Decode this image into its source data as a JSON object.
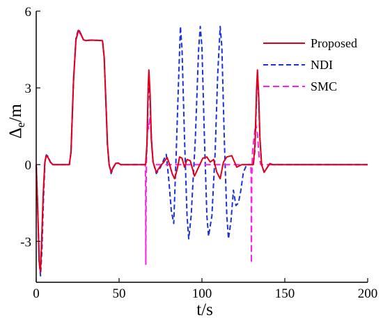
{
  "chart_data": {
    "type": "line",
    "xlabel": "t/s",
    "ylabel": {
      "main": "Δ",
      "sub": "e",
      "unit": "/m"
    },
    "xlim": [
      0,
      200
    ],
    "ylim": [
      -4.6,
      6
    ],
    "xticks": [
      0,
      50,
      100,
      150,
      200
    ],
    "xtick_labels": [
      "0",
      "50",
      "100",
      "150",
      "200"
    ],
    "yticks": [
      -3,
      0,
      3,
      6
    ],
    "ytick_labels": [
      "-3",
      "0",
      "3",
      "6"
    ],
    "grid": false,
    "legend_position": "top-right",
    "series": [
      {
        "name": "Proposed",
        "color": "#e0001b",
        "dash": "solid",
        "points": [
          [
            0,
            0
          ],
          [
            0.8,
            -1.5
          ],
          [
            1.8,
            -3.8
          ],
          [
            2.5,
            -4.2
          ],
          [
            3.2,
            -3.2
          ],
          [
            4.2,
            -1.2
          ],
          [
            5.2,
            0.1
          ],
          [
            6,
            0.35
          ],
          [
            7,
            0.3
          ],
          [
            8.5,
            0.1
          ],
          [
            10,
            0
          ],
          [
            20,
            0
          ],
          [
            21,
            0.5
          ],
          [
            22.5,
            3.3
          ],
          [
            24,
            4.9
          ],
          [
            25.5,
            5.25
          ],
          [
            27,
            5.1
          ],
          [
            28.5,
            4.88
          ],
          [
            30,
            4.85
          ],
          [
            33,
            4.87
          ],
          [
            40,
            4.85
          ],
          [
            41,
            4.2
          ],
          [
            42,
            2.5
          ],
          [
            43,
            0.8
          ],
          [
            44,
            0
          ],
          [
            45.2,
            -0.3
          ],
          [
            46.5,
            -0.1
          ],
          [
            48,
            0.05
          ],
          [
            49.5,
            0.06
          ],
          [
            51,
            0
          ],
          [
            66,
            0
          ],
          [
            66.8,
            0.8
          ],
          [
            67.5,
            3.0
          ],
          [
            68,
            3.7
          ],
          [
            68.7,
            2.8
          ],
          [
            69.5,
            1.0
          ],
          [
            70.5,
            0.1
          ],
          [
            72.5,
            -0.3
          ],
          [
            75,
            -0.05
          ],
          [
            77,
            0.1
          ],
          [
            79,
            0.28
          ],
          [
            80.5,
            0
          ],
          [
            82,
            -0.35
          ],
          [
            83.5,
            -0.55
          ],
          [
            85,
            -0.2
          ],
          [
            86.5,
            0.3
          ],
          [
            88,
            0.25
          ],
          [
            89.5,
            -0.1
          ],
          [
            91,
            0.2
          ],
          [
            93,
            0.15
          ],
          [
            95.5,
            -0.45
          ],
          [
            98,
            -0.1
          ],
          [
            100.5,
            0.25
          ],
          [
            103,
            0.3
          ],
          [
            105,
            0.1
          ],
          [
            107,
            0.2
          ],
          [
            109,
            -0.3
          ],
          [
            111,
            -0.55
          ],
          [
            113,
            0.1
          ],
          [
            115,
            0.3
          ],
          [
            118,
            0.35
          ],
          [
            121,
            -0.1
          ],
          [
            124,
            0
          ],
          [
            131,
            0
          ],
          [
            132,
            0.8
          ],
          [
            133,
            3.0
          ],
          [
            133.5,
            3.7
          ],
          [
            134.2,
            2.8
          ],
          [
            135,
            1.0
          ],
          [
            136,
            0
          ],
          [
            137.5,
            -0.3
          ],
          [
            139.5,
            -0.1
          ],
          [
            141,
            0.04
          ],
          [
            142.5,
            0
          ],
          [
            200,
            0
          ]
        ]
      },
      {
        "name": "NDI",
        "color": "#1a33d6",
        "dash": "7,4",
        "points": [
          [
            0,
            0
          ],
          [
            0.8,
            -1.5
          ],
          [
            1.8,
            -3.8
          ],
          [
            2.6,
            -4.35
          ],
          [
            3.4,
            -3.4
          ],
          [
            4.4,
            -1.3
          ],
          [
            5.3,
            0.1
          ],
          [
            6.1,
            0.38
          ],
          [
            7.1,
            0.32
          ],
          [
            8.6,
            0.1
          ],
          [
            10,
            0
          ],
          [
            20,
            0
          ],
          [
            21,
            0.5
          ],
          [
            22.5,
            3.3
          ],
          [
            24,
            4.95
          ],
          [
            25.5,
            5.3
          ],
          [
            27,
            5.1
          ],
          [
            28.5,
            4.88
          ],
          [
            30,
            4.85
          ],
          [
            33,
            4.87
          ],
          [
            40,
            4.85
          ],
          [
            41,
            4.2
          ],
          [
            42,
            2.5
          ],
          [
            43,
            0.8
          ],
          [
            44,
            0
          ],
          [
            45.2,
            -0.35
          ],
          [
            46.5,
            -0.12
          ],
          [
            48,
            0.05
          ],
          [
            49.5,
            0.06
          ],
          [
            51,
            0
          ],
          [
            66,
            0
          ],
          [
            66.8,
            0.6
          ],
          [
            67.5,
            2.6
          ],
          [
            68,
            3.2
          ],
          [
            68.7,
            2.5
          ],
          [
            69.5,
            1.0
          ],
          [
            70.5,
            0.1
          ],
          [
            72.5,
            -0.35
          ],
          [
            75,
            -0.1
          ],
          [
            77,
            0.2
          ],
          [
            78.5,
            0.4
          ],
          [
            80,
            -0.6
          ],
          [
            81.5,
            -1.8
          ],
          [
            83,
            -2.3
          ],
          [
            84.5,
            0.5
          ],
          [
            86,
            3.5
          ],
          [
            87,
            5.4
          ],
          [
            88,
            4.5
          ],
          [
            89.5,
            1.0
          ],
          [
            91,
            -2.0
          ],
          [
            92,
            -2.9
          ],
          [
            93.5,
            -2.0
          ],
          [
            96,
            1.0
          ],
          [
            98,
            4.5
          ],
          [
            99,
            5.4
          ],
          [
            100,
            4.6
          ],
          [
            101.5,
            1.0
          ],
          [
            103,
            -2.0
          ],
          [
            104,
            -2.8
          ],
          [
            106,
            -2.0
          ],
          [
            108,
            0.5
          ],
          [
            109.5,
            3.5
          ],
          [
            111,
            5.4
          ],
          [
            112,
            4.6
          ],
          [
            113.5,
            1.0
          ],
          [
            115,
            -2.0
          ],
          [
            116,
            -2.9
          ],
          [
            117.5,
            -2.2
          ],
          [
            119,
            -1.0
          ],
          [
            120.5,
            -1.6
          ],
          [
            122,
            -1.5
          ],
          [
            123.5,
            -1.0
          ],
          [
            125,
            -0.3
          ],
          [
            127,
            0
          ],
          [
            131,
            0
          ],
          [
            132,
            0.6
          ],
          [
            133,
            2.8
          ],
          [
            133.5,
            3.4
          ],
          [
            134.2,
            2.6
          ],
          [
            135,
            1.0
          ],
          [
            136,
            0
          ],
          [
            137.5,
            -0.3
          ],
          [
            139.5,
            -0.1
          ],
          [
            141,
            0.04
          ],
          [
            142.5,
            0
          ],
          [
            200,
            0
          ]
        ]
      },
      {
        "name": "SMC",
        "color": "#ff1ee6",
        "dash": "9,5",
        "points": [
          [
            0,
            0
          ],
          [
            0.8,
            -1.5
          ],
          [
            1.8,
            -3.7
          ],
          [
            2.5,
            -4.1
          ],
          [
            3.2,
            -3.1
          ],
          [
            4.2,
            -1.2
          ],
          [
            5.2,
            0.1
          ],
          [
            6,
            0.33
          ],
          [
            7,
            0.28
          ],
          [
            8.5,
            0.1
          ],
          [
            10,
            0
          ],
          [
            20,
            0
          ],
          [
            21,
            0.5
          ],
          [
            22.5,
            3.3
          ],
          [
            24,
            4.88
          ],
          [
            25.5,
            5.2
          ],
          [
            27,
            5.08
          ],
          [
            28.5,
            4.88
          ],
          [
            30,
            4.85
          ],
          [
            33,
            4.87
          ],
          [
            40,
            4.85
          ],
          [
            41,
            4.2
          ],
          [
            42,
            2.5
          ],
          [
            43,
            0.8
          ],
          [
            44,
            0
          ],
          [
            45.2,
            -0.28
          ],
          [
            46.5,
            -0.1
          ],
          [
            48,
            0.05
          ],
          [
            49.5,
            0.05
          ],
          [
            51,
            0
          ],
          [
            65.8,
            0
          ],
          [
            66,
            -0.7
          ],
          [
            66.15,
            -3.9
          ],
          [
            66.35,
            -0.7
          ],
          [
            66.6,
            0.5
          ],
          [
            67.3,
            1.6
          ],
          [
            67.8,
            1.4
          ],
          [
            68.8,
            1.9
          ],
          [
            69.5,
            0.9
          ],
          [
            70.5,
            0.1
          ],
          [
            72,
            0
          ],
          [
            120,
            0
          ],
          [
            128,
            0
          ],
          [
            129.5,
            0
          ],
          [
            129.7,
            -0.6
          ],
          [
            129.85,
            -3.85
          ],
          [
            130.05,
            -0.6
          ],
          [
            130.5,
            0.5
          ],
          [
            131.5,
            1.1
          ],
          [
            132.5,
            1.6
          ],
          [
            133.5,
            1.2
          ],
          [
            134.5,
            0.3
          ],
          [
            135.5,
            0
          ],
          [
            200,
            0
          ]
        ]
      }
    ]
  }
}
